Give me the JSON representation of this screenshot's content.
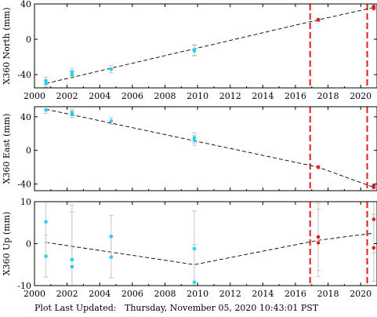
{
  "footer": {
    "label": "Plot Last Updated:",
    "timestamp": "Thursday, November 05, 2020 10:43:01 PST"
  },
  "chart_data": [
    {
      "type": "scatter",
      "panel": "north",
      "ylabel": "X360 North (mm)",
      "xlim": [
        2000,
        2021
      ],
      "ylim": [
        -55,
        40
      ],
      "yticks": [
        -40,
        0,
        40
      ],
      "xticks": [
        2000,
        2002,
        2004,
        2006,
        2008,
        2010,
        2012,
        2014,
        2016,
        2018,
        2020
      ],
      "show_xtick_labels": true,
      "events": [
        2016.9,
        2020.4
      ],
      "trend": [
        [
          2000.7,
          -50
        ],
        [
          2017.4,
          22
        ],
        [
          2020.8,
          36
        ]
      ],
      "series": [
        {
          "color": "#22d3ee",
          "points": [
            {
              "x": 2000.7,
              "y": -47,
              "err": 4
            },
            {
              "x": 2000.7,
              "y": -50,
              "err": 4
            },
            {
              "x": 2002.3,
              "y": -37,
              "err": 4
            },
            {
              "x": 2002.3,
              "y": -40,
              "err": 4
            },
            {
              "x": 2004.7,
              "y": -34,
              "err": 4
            },
            {
              "x": 2009.8,
              "y": -12,
              "err": 6
            },
            {
              "x": 2009.8,
              "y": -13,
              "err": 6
            }
          ]
        },
        {
          "color": "#e11d1d",
          "points": [
            {
              "x": 2017.4,
              "y": 22,
              "err": 2
            },
            {
              "x": 2020.8,
              "y": 35,
              "err": 2
            },
            {
              "x": 2020.8,
              "y": 37,
              "err": 2
            }
          ]
        }
      ]
    },
    {
      "type": "scatter",
      "panel": "east",
      "ylabel": "X360 East (mm)",
      "xlim": [
        2000,
        2021
      ],
      "ylim": [
        -48,
        52
      ],
      "yticks": [
        -40,
        0,
        40
      ],
      "xticks": [
        2000,
        2002,
        2004,
        2006,
        2008,
        2010,
        2012,
        2014,
        2016,
        2018,
        2020
      ],
      "show_xtick_labels": false,
      "events": [
        2016.9,
        2020.4
      ],
      "trend": [
        [
          2000.7,
          49
        ],
        [
          2017.4,
          -20
        ],
        [
          2020.8,
          -44
        ]
      ],
      "series": [
        {
          "color": "#22d3ee",
          "points": [
            {
              "x": 2000.7,
              "y": 48,
              "err": 4
            },
            {
              "x": 2002.3,
              "y": 45,
              "err": 4
            },
            {
              "x": 2002.3,
              "y": 43,
              "err": 4
            },
            {
              "x": 2004.7,
              "y": 35,
              "err": 4
            },
            {
              "x": 2009.8,
              "y": 15,
              "err": 6
            },
            {
              "x": 2009.8,
              "y": 12,
              "err": 6
            }
          ]
        },
        {
          "color": "#e11d1d",
          "points": [
            {
              "x": 2017.4,
              "y": -20,
              "err": 2
            },
            {
              "x": 2020.8,
              "y": -42,
              "err": 2
            },
            {
              "x": 2020.8,
              "y": -44,
              "err": 2
            }
          ]
        }
      ]
    },
    {
      "type": "scatter",
      "panel": "up",
      "ylabel": "X360 Up (mm)",
      "xlim": [
        2000,
        2021
      ],
      "ylim": [
        -10,
        10
      ],
      "yticks": [
        -10,
        0,
        10
      ],
      "xticks": [
        2000,
        2002,
        2004,
        2006,
        2008,
        2010,
        2012,
        2014,
        2016,
        2018,
        2020
      ],
      "show_xtick_labels": true,
      "events": [
        2016.9,
        2020.4
      ],
      "trend": [
        [
          2000.7,
          0.3
        ],
        [
          2009.8,
          -5
        ],
        [
          2017.4,
          0.8
        ],
        [
          2020.8,
          2.5
        ]
      ],
      "series": [
        {
          "color": "#22d3ee",
          "points": [
            {
              "x": 2000.7,
              "y": 5.2,
              "err": 5
            },
            {
              "x": 2000.7,
              "y": -3,
              "err": 5
            },
            {
              "x": 2002.3,
              "y": -3.8,
              "err": 13
            },
            {
              "x": 2002.3,
              "y": -5.5,
              "err": 13
            },
            {
              "x": 2004.7,
              "y": 1.7,
              "err": 5
            },
            {
              "x": 2004.7,
              "y": -3.2,
              "err": 5
            },
            {
              "x": 2009.8,
              "y": -1.2,
              "err": 9
            },
            {
              "x": 2009.8,
              "y": -9.2,
              "err": 9
            }
          ]
        },
        {
          "color": "#e11d1d",
          "points": [
            {
              "x": 2017.4,
              "y": 1.6,
              "err": 8
            },
            {
              "x": 2017.4,
              "y": 0.2,
              "err": 8
            },
            {
              "x": 2020.8,
              "y": 5.8,
              "err": 8
            },
            {
              "x": 2020.8,
              "y": -1.0,
              "err": 8
            }
          ]
        }
      ]
    }
  ]
}
